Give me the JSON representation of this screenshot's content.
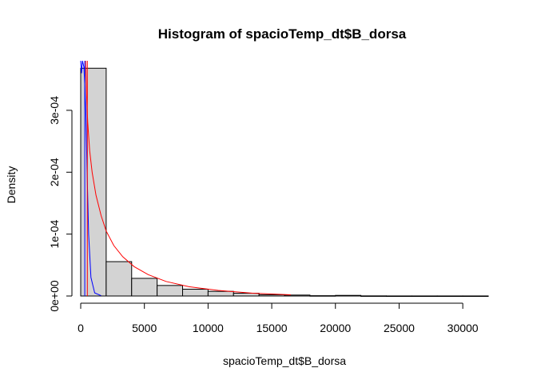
{
  "chart_data": {
    "type": "bar",
    "title": "Histogram of spacioTemp_dt$B_dorsa",
    "xlabel": "spacioTemp_dt$B_dorsa",
    "ylabel": "Density",
    "xlim": [
      0,
      32000
    ],
    "ylim": [
      0,
      0.00038
    ],
    "x_ticks": [
      0,
      5000,
      10000,
      15000,
      20000,
      25000,
      30000
    ],
    "x_tick_labels": [
      "0",
      "5000",
      "10000",
      "15000",
      "20000",
      "25000",
      "30000"
    ],
    "y_ticks": [
      0,
      0.0001,
      0.0002,
      0.0003
    ],
    "y_tick_labels": [
      "0e+00",
      "1e-04",
      "2e-04",
      "3e-04"
    ],
    "bins": [
      {
        "start": 0,
        "end": 2000,
        "density": 0.000368
      },
      {
        "start": 2000,
        "end": 4000,
        "density": 5.55e-05
      },
      {
        "start": 4000,
        "end": 6000,
        "density": 2.85e-05
      },
      {
        "start": 6000,
        "end": 8000,
        "density": 1.7e-05
      },
      {
        "start": 8000,
        "end": 10000,
        "density": 1.1e-05
      },
      {
        "start": 10000,
        "end": 12000,
        "density": 7.5e-06
      },
      {
        "start": 12000,
        "end": 14000,
        "density": 4.5e-06
      },
      {
        "start": 14000,
        "end": 16000,
        "density": 2e-06
      },
      {
        "start": 16000,
        "end": 18000,
        "density": 1.5e-06
      },
      {
        "start": 18000,
        "end": 20000,
        "density": 5e-07
      },
      {
        "start": 20000,
        "end": 22000,
        "density": 1e-06
      },
      {
        "start": 22000,
        "end": 24000,
        "density": 2e-07
      },
      {
        "start": 24000,
        "end": 26000,
        "density": 1e-07
      },
      {
        "start": 26000,
        "end": 28000,
        "density": 1e-07
      },
      {
        "start": 28000,
        "end": 30000,
        "density": 1e-07
      },
      {
        "start": 30000,
        "end": 32000,
        "density": 1e-07
      }
    ],
    "series": [
      {
        "color": "#ff0000",
        "x": [
          380,
          450,
          550,
          700,
          900,
          1200,
          1600,
          2000,
          2600,
          3300,
          4200,
          5300,
          6700,
          8500,
          10800,
          13500,
          16500
        ],
        "y": [
          0.00038,
          0.00033,
          0.00028,
          0.000235,
          0.0002,
          0.000163,
          0.00013,
          0.000105,
          8.15e-05,
          6.35e-05,
          4.75e-05,
          3.45e-05,
          2.35e-05,
          1.5e-05,
          9e-06,
          4.5e-06,
          2e-06
        ]
      },
      {
        "color": "#0000ff",
        "x": [
          0,
          60,
          140,
          250,
          320,
          400,
          500,
          620,
          800,
          1100,
          1600
        ],
        "y": [
          0.00038,
          0.00036,
          0.00038,
          0.00037,
          0.00034,
          0.0003,
          0.0002,
          0.0001,
          3e-05,
          5e-06,
          5e-07
        ]
      }
    ],
    "vlines": [
      {
        "x": 320,
        "color": "#0000ff"
      },
      {
        "x": 520,
        "color": "#ff0000"
      }
    ],
    "grid": false
  }
}
